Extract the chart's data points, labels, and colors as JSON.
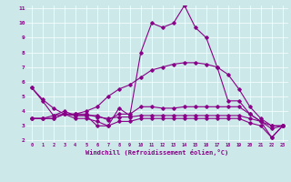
{
  "xlabel": "Windchill (Refroidissement éolien,°C)",
  "background_color": "#cce8e8",
  "line_color": "#880088",
  "xmin": 0,
  "xmax": 23,
  "ymin": 2,
  "ymax": 11,
  "yticks": [
    2,
    3,
    4,
    5,
    6,
    7,
    8,
    9,
    10,
    11
  ],
  "xticks": [
    0,
    1,
    2,
    3,
    4,
    5,
    6,
    7,
    8,
    9,
    10,
    11,
    12,
    13,
    14,
    15,
    16,
    17,
    18,
    19,
    20,
    21,
    22,
    23
  ],
  "lines": [
    [
      5.6,
      4.7,
      3.7,
      4.0,
      3.7,
      3.7,
      3.0,
      3.0,
      4.2,
      3.7,
      8.0,
      10.0,
      9.7,
      10.0,
      11.2,
      9.7,
      9.0,
      7.0,
      4.7,
      4.7,
      3.8,
      3.3,
      2.2,
      3.0
    ],
    [
      5.6,
      4.8,
      4.2,
      3.8,
      3.8,
      4.0,
      4.3,
      5.0,
      5.5,
      5.8,
      6.3,
      6.8,
      7.0,
      7.2,
      7.3,
      7.3,
      7.2,
      7.0,
      6.5,
      5.5,
      4.3,
      3.5,
      3.0,
      3.0
    ],
    [
      3.5,
      3.5,
      3.7,
      3.8,
      3.7,
      3.7,
      3.7,
      3.4,
      3.8,
      3.8,
      4.3,
      4.3,
      4.2,
      4.2,
      4.3,
      4.3,
      4.3,
      4.3,
      4.3,
      4.3,
      3.8,
      3.3,
      3.0,
      3.0
    ],
    [
      3.5,
      3.5,
      3.5,
      3.8,
      3.8,
      3.8,
      3.6,
      3.5,
      3.6,
      3.6,
      3.7,
      3.7,
      3.7,
      3.7,
      3.7,
      3.7,
      3.7,
      3.7,
      3.7,
      3.7,
      3.5,
      3.3,
      2.8,
      3.0
    ],
    [
      3.5,
      3.5,
      3.5,
      3.8,
      3.5,
      3.5,
      3.3,
      3.0,
      3.3,
      3.3,
      3.5,
      3.5,
      3.5,
      3.5,
      3.5,
      3.5,
      3.5,
      3.5,
      3.5,
      3.5,
      3.2,
      3.0,
      2.2,
      3.0
    ]
  ]
}
